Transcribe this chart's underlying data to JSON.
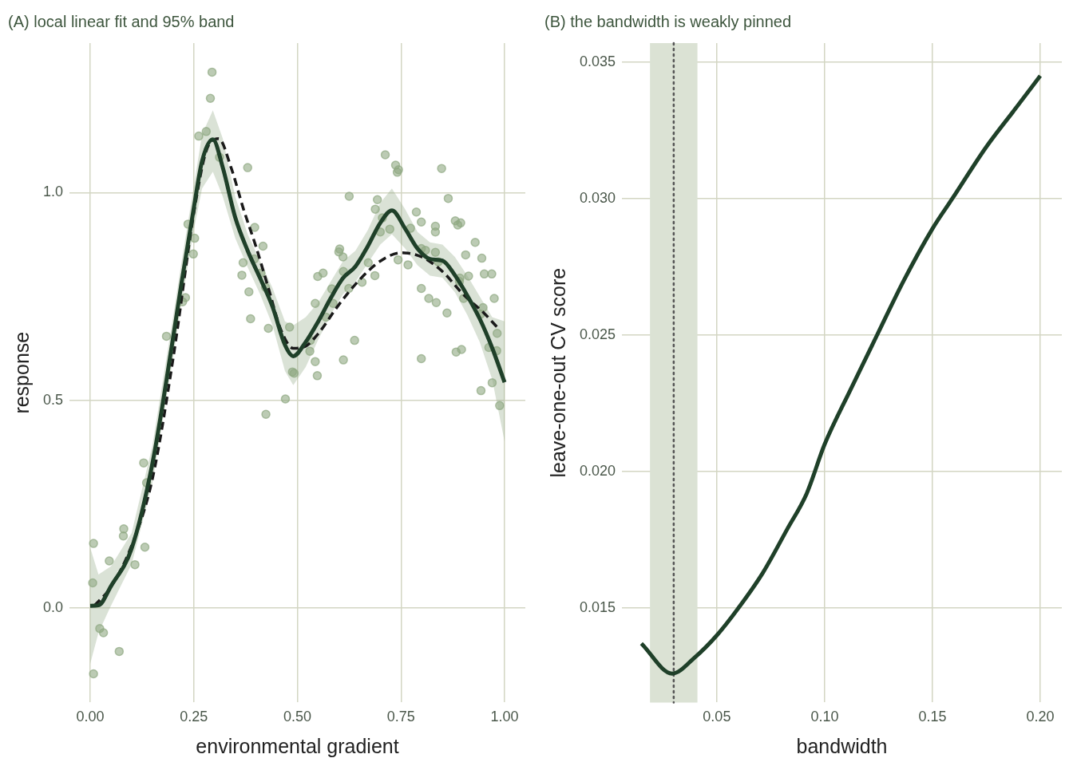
{
  "chart_data": [
    {
      "type": "scatter",
      "title": "(A) local linear fit and 95% band",
      "xlabel": "environmental gradient",
      "ylabel": "response",
      "xlim": [
        -0.05,
        1.05
      ],
      "ylim": [
        -0.228,
        1.36
      ],
      "xticks": [
        {
          "value": 0,
          "label": "0.00"
        },
        {
          "value": 0.25,
          "label": "0.25"
        },
        {
          "value": 0.5,
          "label": "0.50"
        },
        {
          "value": 0.75,
          "label": "0.75"
        },
        {
          "value": 1,
          "label": "1.00"
        }
      ],
      "yticks": [
        {
          "value": 0,
          "label": "0.0"
        },
        {
          "value": 0.5,
          "label": "0.5"
        },
        {
          "value": 1,
          "label": "1.0"
        }
      ],
      "grid": true,
      "legend": false,
      "series": [
        {
          "marker": "circle",
          "color": "#8fa882",
          "x": [
            0.294,
            0.29,
            0.262,
            0.28,
            0.312,
            0.38,
            0.236,
            0.252,
            0.249,
            0.23,
            0.223,
            0.184,
            0.397,
            0.417,
            0.369,
            0.396,
            0.366,
            0.412,
            0.423,
            0.383,
            0.387,
            0.43,
            0.481,
            0.488,
            0.492,
            0.531,
            0.53,
            0.543,
            0.543,
            0.548,
            0.549,
            0.562,
            0.471,
            0.583,
            0.586,
            0.569,
            0.602,
            0.6,
            0.61,
            0.611,
            0.625,
            0.624,
            0.638,
            0.611,
            0.656,
            0.671,
            0.687,
            0.688,
            0.693,
            0.7,
            0.705,
            0.712,
            0.723,
            0.737,
            0.744,
            0.741,
            0.743,
            0.773,
            0.787,
            0.799,
            0.767,
            0.799,
            0.809,
            0.799,
            0.817,
            0.835,
            0.799,
            0.833,
            0.833,
            0.833,
            0.84,
            0.848,
            0.864,
            0.861,
            0.881,
            0.894,
            0.887,
            0.906,
            0.892,
            0.913,
            0.891,
            0.901,
            0.883,
            0.896,
            0.929,
            0.945,
            0.951,
            0.969,
            0.975,
            0.948,
            0.942,
            0.982,
            0.962,
            0.981,
            0.97,
            0.943,
            0.424,
            0.988,
            0.129,
            0.136,
            0.081,
            0.08,
            0.132,
            0.008,
            0.046,
            0.108,
            0.006,
            0.023,
            0.032,
            0.07,
            0.008
          ],
          "values": [
            1.29,
            1.227,
            1.136,
            1.147,
            1.085,
            1.06,
            0.924,
            0.89,
            0.852,
            0.747,
            0.737,
            0.654,
            0.916,
            0.871,
            0.831,
            0.84,
            0.801,
            0.806,
            0.772,
            0.761,
            0.696,
            0.673,
            0.676,
            0.568,
            0.565,
            0.644,
            0.618,
            0.733,
            0.593,
            0.559,
            0.798,
            0.806,
            0.503,
            0.768,
            0.733,
            0.7,
            0.864,
            0.857,
            0.845,
            0.81,
            0.991,
            0.769,
            0.644,
            0.597,
            0.784,
            0.831,
            0.8,
            0.96,
            0.983,
            0.905,
            0.939,
            1.091,
            0.912,
            1.066,
            1.055,
            1.049,
            0.838,
            0.914,
            0.953,
            0.929,
            0.826,
            0.865,
            0.861,
            0.769,
            0.745,
            0.735,
            0.6,
            0.919,
            0.905,
            0.856,
            0.833,
            1.058,
            0.986,
            0.71,
            0.932,
            0.927,
            0.922,
            0.85,
            0.794,
            0.799,
            0.786,
            0.745,
            0.616,
            0.622,
            0.88,
            0.842,
            0.804,
            0.804,
            0.745,
            0.723,
            0.707,
            0.661,
            0.627,
            0.619,
            0.542,
            0.523,
            0.466,
            0.487,
            0.349,
            0.301,
            0.19,
            0.173,
            0.146,
            0.155,
            0.113,
            0.104,
            0.06,
            -0.05,
            -0.06,
            -0.105,
            -0.159
          ]
        },
        {
          "type": "line",
          "marker": "none",
          "line_style": "solid",
          "color": "#1f4029",
          "x": [
            0,
            0.02,
            0.05,
            0.1,
            0.15,
            0.2,
            0.22,
            0.25,
            0.27,
            0.296,
            0.32,
            0.35,
            0.38,
            0.41,
            0.44,
            0.47,
            0.49,
            0.52,
            0.55,
            0.58,
            0.61,
            0.64,
            0.67,
            0.7,
            0.728,
            0.76,
            0.79,
            0.82,
            0.85,
            0.88,
            0.91,
            0.94,
            0.97,
            1.0
          ],
          "values": [
            0.005,
            0.006,
            0.052,
            0.143,
            0.347,
            0.65,
            0.78,
            0.963,
            1.076,
            1.128,
            1.06,
            0.94,
            0.86,
            0.794,
            0.725,
            0.633,
            0.606,
            0.64,
            0.689,
            0.745,
            0.794,
            0.822,
            0.871,
            0.927,
            0.957,
            0.913,
            0.865,
            0.84,
            0.836,
            0.801,
            0.752,
            0.696,
            0.626,
            0.543
          ],
          "lower": [
            -0.135,
            -0.06,
            0.005,
            0.105,
            0.3,
            0.6,
            0.73,
            0.91,
            1.01,
            1.05,
            0.99,
            0.89,
            0.82,
            0.755,
            0.68,
            0.57,
            0.536,
            0.58,
            0.645,
            0.705,
            0.755,
            0.785,
            0.83,
            0.875,
            0.9,
            0.865,
            0.825,
            0.8,
            0.795,
            0.76,
            0.705,
            0.64,
            0.55,
            0.4
          ],
          "upper": [
            0.145,
            0.08,
            0.1,
            0.18,
            0.39,
            0.7,
            0.83,
            1.015,
            1.14,
            1.198,
            1.13,
            0.99,
            0.9,
            0.835,
            0.77,
            0.69,
            0.68,
            0.7,
            0.735,
            0.785,
            0.835,
            0.86,
            0.91,
            0.975,
            1.01,
            0.96,
            0.905,
            0.88,
            0.875,
            0.845,
            0.8,
            0.75,
            0.7,
            0.69
          ]
        },
        {
          "type": "line",
          "marker": "none",
          "line_style": "dashed",
          "color": "#1a1a1a",
          "x": [
            0.01,
            0.05,
            0.1,
            0.15,
            0.2,
            0.25,
            0.28,
            0.31,
            0.34,
            0.37,
            0.4,
            0.43,
            0.46,
            0.49,
            0.52,
            0.55,
            0.6,
            0.65,
            0.7,
            0.75,
            0.8,
            0.85,
            0.9,
            0.95,
            0.982
          ],
          "values": [
            0.005,
            0.05,
            0.15,
            0.31,
            0.6,
            0.95,
            1.1,
            1.13,
            1.06,
            0.96,
            0.87,
            0.77,
            0.67,
            0.625,
            0.63,
            0.66,
            0.73,
            0.79,
            0.835,
            0.855,
            0.845,
            0.81,
            0.755,
            0.71,
            0.676
          ]
        }
      ]
    },
    {
      "type": "line",
      "title": "(B) the bandwidth is weakly pinned",
      "xlabel": "bandwidth",
      "ylabel": "leave-one-out CV score",
      "xlim": [
        0.006,
        0.21
      ],
      "ylim": [
        0.01154,
        0.0357
      ],
      "xticks": [
        0.05,
        {
          "value": 0.1,
          "label": "0.10"
        },
        0.15,
        {
          "value": 0.2,
          "label": "0.20"
        }
      ],
      "yticks": [
        0.015,
        {
          "value": 0.02,
          "label": "0.020"
        },
        0.025,
        {
          "value": 0.03,
          "label": "0.030"
        },
        0.035
      ],
      "grid": true,
      "legend": false,
      "bands": [
        {
          "axis": "x",
          "from": 0.019,
          "to": 0.041,
          "color": "#dbe2d4"
        }
      ],
      "ref_lines": [
        {
          "axis": "x",
          "value": 0.03,
          "color": "#555555",
          "line_style": "dotted"
        }
      ],
      "series": [
        {
          "color": "#1f4029",
          "marker": "none",
          "line_style": "solid",
          "x": [
            0.015,
            0.0293,
            0.0399,
            0.05,
            0.06,
            0.0714,
            0.0827,
            0.0917,
            0.1,
            0.112,
            0.1243,
            0.1367,
            0.15,
            0.1592,
            0.175,
            0.1885,
            0.2
          ],
          "values": [
            0.0137,
            0.0126,
            0.0132,
            0.014,
            0.015,
            0.0163,
            0.0179,
            0.0192,
            0.021,
            0.023,
            0.025,
            0.027,
            0.0289,
            0.03,
            0.0319,
            0.0333,
            0.0345
          ]
        }
      ]
    }
  ]
}
